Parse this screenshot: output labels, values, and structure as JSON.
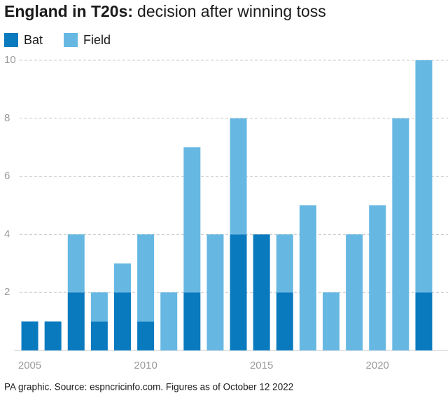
{
  "chart_data": {
    "type": "stacked_bar",
    "title": "England in T20s:",
    "subtitle": "decision after winning toss",
    "source": "PA graphic. Source: espncricinfo.com. Figures as of October 12 2022",
    "x": [
      2005,
      2006,
      2007,
      2008,
      2009,
      2010,
      2011,
      2012,
      2013,
      2014,
      2015,
      2016,
      2017,
      2018,
      2019,
      2020,
      2021,
      2022
    ],
    "series": [
      {
        "name": "Bat",
        "color": "#0a7abf",
        "values": [
          1,
          1,
          2,
          1,
          2,
          1,
          0,
          2,
          0,
          4,
          4,
          2,
          0,
          0,
          0,
          0,
          0,
          2
        ]
      },
      {
        "name": "Field",
        "color": "#66b8e3",
        "values": [
          0,
          0,
          2,
          1,
          1,
          3,
          2,
          5,
          4,
          4,
          0,
          2,
          5,
          2,
          4,
          5,
          8,
          8
        ]
      }
    ],
    "xlim": [
      2004.5,
      2022.5
    ],
    "xticks": [
      2005,
      2010,
      2015,
      2020
    ],
    "ylim": [
      0,
      10
    ],
    "yticks": [
      2,
      4,
      6,
      8,
      10
    ],
    "grid": true,
    "legend": "top-left"
  }
}
